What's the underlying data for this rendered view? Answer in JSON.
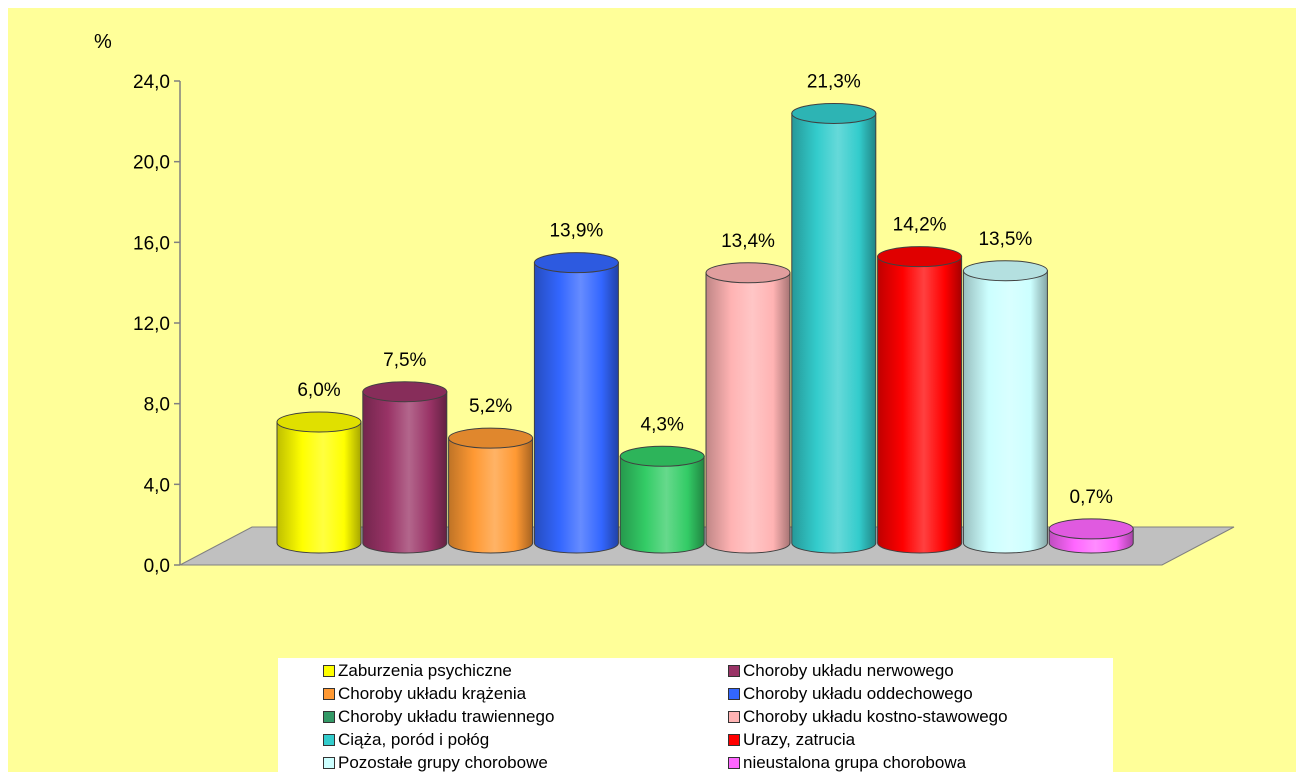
{
  "chart_data": {
    "type": "bar",
    "title": "",
    "xlabel": "",
    "ylabel": "%",
    "ylim": [
      0,
      24
    ],
    "yticks": [
      "0,0",
      "4,0",
      "8,0",
      "12,0",
      "16,0",
      "20,0",
      "24,0"
    ],
    "grid": false,
    "legend_position": "bottom",
    "categories": [
      "Zaburzenia psychiczne",
      "Choroby układu nerwowego",
      "Choroby układu krążenia",
      "Choroby układu oddechowego",
      "Choroby układu trawiennego",
      "Choroby układu kostno-stawowego",
      "Ciąża, poród i połóg",
      "Urazy, zatrucia",
      "Pozostałe grupy chorobowe",
      "nieustalona grupa chorobowa"
    ],
    "values": [
      6.0,
      7.5,
      5.2,
      13.9,
      4.3,
      13.4,
      21.3,
      14.2,
      13.5,
      0.7
    ],
    "labels": [
      "6,0%",
      "7,5%",
      "5,2%",
      "13,9%",
      "4,3%",
      "13,4%",
      "21,3%",
      "14,2%",
      "13,5%",
      "0,7%"
    ],
    "colors": [
      "#ffff00",
      "#993366",
      "#ff9933",
      "#3366ff",
      "#33cc66",
      "#ffb3b3",
      "#33cccc",
      "#ff0000",
      "#ccffff",
      "#ff66ff"
    ],
    "legend_colors": [
      "#ffff00",
      "#993366",
      "#ff9933",
      "#3366ff",
      "#339966",
      "#ffb3b3",
      "#33cccc",
      "#ff0000",
      "#ccffff",
      "#ff66ff"
    ]
  }
}
